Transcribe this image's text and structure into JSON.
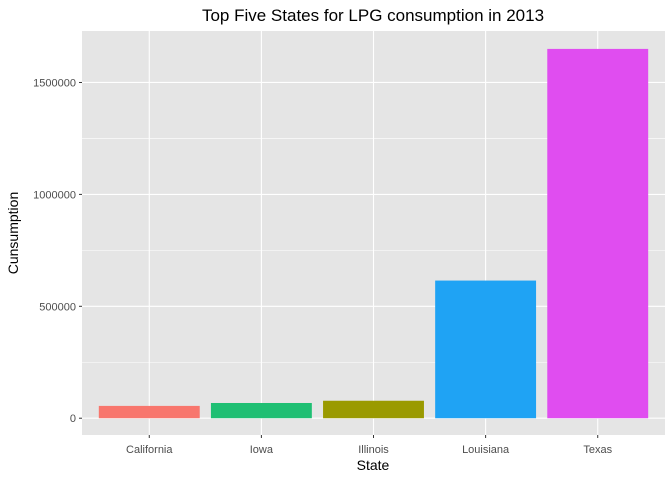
{
  "chart_data": {
    "type": "bar",
    "title": "Top Five States for LPG consumption in 2013",
    "xlabel": "State",
    "ylabel": "Cunsumption",
    "categories": [
      "California",
      "Iowa",
      "Illinois",
      "Louisiana",
      "Texas"
    ],
    "values": [
      55000,
      68000,
      78000,
      615000,
      1650000
    ],
    "colors": [
      "#F8766D",
      "#1FBF73",
      "#9A9A00",
      "#1FA3F4",
      "#E04DF0"
    ],
    "ylim": [
      -75000,
      1730000
    ],
    "yticks": [
      0,
      500000,
      1000000,
      1500000
    ],
    "ytick_labels": [
      "0",
      "500000",
      "1000000",
      "1500000"
    ],
    "grid": true,
    "panel_background": "#E5E5E5",
    "gridline_color": "#FFFFFF",
    "legend": "none"
  }
}
